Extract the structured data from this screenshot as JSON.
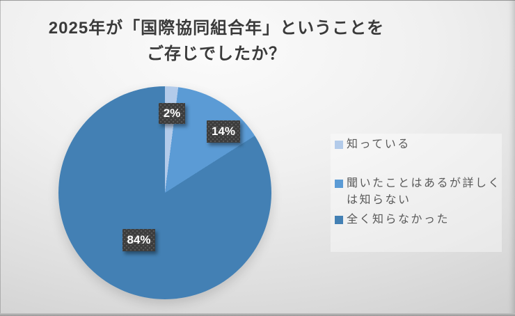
{
  "slide": {
    "title_line1": "2025年が「国際協同組合年」ということを",
    "title_line2": "ご存じでしたか？"
  },
  "chart_data": {
    "type": "pie",
    "title": "2025年が「国際協同組合年」ということを ご存じでしたか？",
    "categories": [
      "知っている",
      "聞いたことはあるが詳しくは知らない",
      "全く知らなかった"
    ],
    "values": [
      2,
      14,
      84
    ],
    "unit": "percent",
    "data_labels": [
      "2%",
      "14%",
      "84%"
    ],
    "colors": [
      "#b3cbea",
      "#5b9bd5",
      "#4380b4"
    ],
    "start_angle_deg": 0,
    "direction": "clockwise",
    "legend_position": "right",
    "data_label_style": {
      "background": "#3c3c3c",
      "text_color": "#ffffff",
      "texture": "dotted"
    }
  },
  "legend": {
    "items": [
      {
        "label": "知っている"
      },
      {
        "label": "聞いたことはあるが詳しくは知らない"
      },
      {
        "label": "全く知らなかった"
      }
    ]
  }
}
